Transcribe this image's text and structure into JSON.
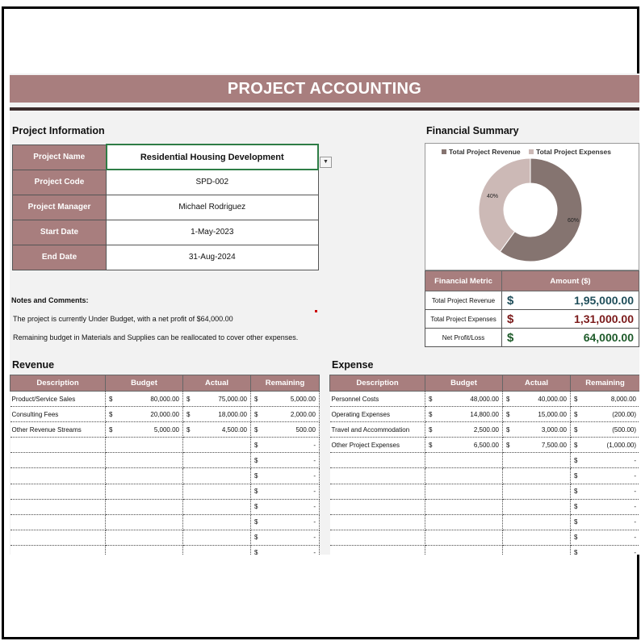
{
  "title": "PROJECT ACCOUNTING",
  "project_info": {
    "section_title": "Project Information",
    "rows": [
      {
        "label": "Project Name",
        "value": "Residential Housing Development"
      },
      {
        "label": "Project Code",
        "value": "SPD-002"
      },
      {
        "label": "Project Manager",
        "value": "Michael Rodriguez"
      },
      {
        "label": "Start Date",
        "value": "1-May-2023"
      },
      {
        "label": "End Date",
        "value": "31-Aug-2024"
      }
    ]
  },
  "notes": {
    "title": "Notes and Comments:",
    "lines": [
      "The project is currently Under Budget, with a net profit of $64,000.00",
      "Remaining budget in Materials and Supplies can be reallocated to cover other expenses."
    ]
  },
  "financial_summary": {
    "section_title": "Financial Summary",
    "headers": [
      "Financial Metric",
      "Amount ($)"
    ],
    "rows": [
      {
        "metric": "Total Project Revenue",
        "currency": "$",
        "amount": "1,95,000.00"
      },
      {
        "metric": "Total Project Expenses",
        "currency": "$",
        "amount": "1,31,000.00"
      },
      {
        "metric": "Net Profit/Loss",
        "currency": "$",
        "amount": "64,000.00"
      }
    ]
  },
  "chart_data": {
    "type": "pie",
    "donut": true,
    "categories": [
      "Total Project Revenue",
      "Total Project Expenses"
    ],
    "values": [
      60,
      40
    ],
    "data_labels": [
      "60%",
      "40%"
    ],
    "colors": [
      "#857470",
      "#ccb9b6"
    ],
    "legend_position": "top"
  },
  "revenue": {
    "section_title": "Revenue",
    "headers": [
      "Description",
      "Budget",
      "Actual",
      "Remaining"
    ],
    "rows": [
      {
        "desc": "Product/Service Sales",
        "budget": "80,000.00",
        "actual": "75,000.00",
        "remaining": "5,000.00"
      },
      {
        "desc": "Consulting Fees",
        "budget": "20,000.00",
        "actual": "18,000.00",
        "remaining": "2,000.00"
      },
      {
        "desc": "Other Revenue Streams",
        "budget": "5,000.00",
        "actual": "4,500.00",
        "remaining": "500.00"
      },
      {
        "desc": "",
        "budget": "",
        "actual": "",
        "remaining": "-"
      },
      {
        "desc": "",
        "budget": "",
        "actual": "",
        "remaining": "-"
      },
      {
        "desc": "",
        "budget": "",
        "actual": "",
        "remaining": "-"
      },
      {
        "desc": "",
        "budget": "",
        "actual": "",
        "remaining": "-"
      },
      {
        "desc": "",
        "budget": "",
        "actual": "",
        "remaining": "-"
      },
      {
        "desc": "",
        "budget": "",
        "actual": "",
        "remaining": "-"
      },
      {
        "desc": "",
        "budget": "",
        "actual": "",
        "remaining": "-"
      },
      {
        "desc": "",
        "budget": "",
        "actual": "",
        "remaining": "-"
      }
    ]
  },
  "expense": {
    "section_title": "Expense",
    "headers": [
      "Description",
      "Budget",
      "Actual",
      "Remaining"
    ],
    "rows": [
      {
        "desc": "Personnel Costs",
        "budget": "48,000.00",
        "actual": "40,000.00",
        "remaining": "8,000.00"
      },
      {
        "desc": "Operating Expenses",
        "budget": "14,800.00",
        "actual": "15,000.00",
        "remaining": "(200.00)"
      },
      {
        "desc": "Travel and Accommodation",
        "budget": "2,500.00",
        "actual": "3,000.00",
        "remaining": "(500.00)"
      },
      {
        "desc": "Other Project Expenses",
        "budget": "6,500.00",
        "actual": "7,500.00",
        "remaining": "(1,000.00)"
      },
      {
        "desc": "",
        "budget": "",
        "actual": "",
        "remaining": "-"
      },
      {
        "desc": "",
        "budget": "",
        "actual": "",
        "remaining": "-"
      },
      {
        "desc": "",
        "budget": "",
        "actual": "",
        "remaining": "-"
      },
      {
        "desc": "",
        "budget": "",
        "actual": "",
        "remaining": "-"
      },
      {
        "desc": "",
        "budget": "",
        "actual": "",
        "remaining": "-"
      },
      {
        "desc": "",
        "budget": "",
        "actual": "",
        "remaining": "-"
      },
      {
        "desc": "",
        "budget": "",
        "actual": "",
        "remaining": "-"
      }
    ]
  }
}
